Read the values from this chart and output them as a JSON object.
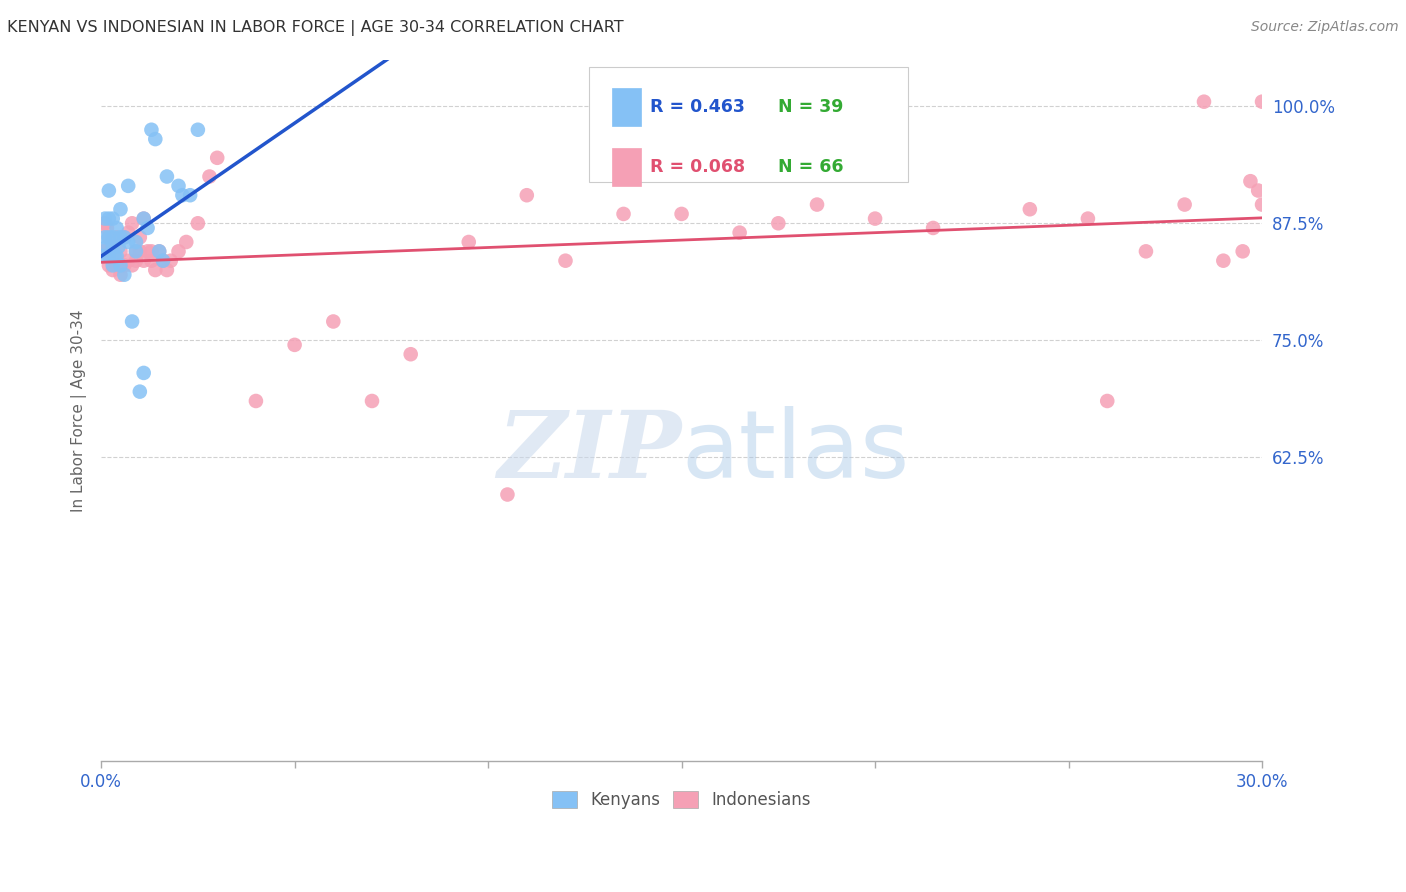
{
  "title": "KENYAN VS INDONESIAN IN LABOR FORCE | AGE 30-34 CORRELATION CHART",
  "source": "Source: ZipAtlas.com",
  "ylabel": "In Labor Force | Age 30-34",
  "xlim": [
    0.0,
    0.3
  ],
  "ylim": [
    0.3,
    1.05
  ],
  "ytick_vals": [
    0.625,
    0.75,
    0.875,
    1.0
  ],
  "ytick_labels": [
    "62.5%",
    "75.0%",
    "87.5%",
    "100.0%"
  ],
  "xticks": [
    0.0,
    0.05,
    0.1,
    0.15,
    0.2,
    0.25,
    0.3
  ],
  "xtick_labels": [
    "0.0%",
    "",
    "",
    "",
    "",
    "",
    "30.0%"
  ],
  "grid_color": "#cccccc",
  "background_color": "#ffffff",
  "kenyan_color": "#85c1f5",
  "indonesian_color": "#f5a0b5",
  "kenyan_line_color": "#2255cc",
  "indonesian_line_color": "#e05070",
  "label_color": "#3366cc",
  "text_color": "#333333",
  "legend_R_kenyan": "R = 0.463",
  "legend_N_kenyan": "N = 39",
  "legend_R_indonesian": "R = 0.068",
  "legend_N_indonesian": "N = 66",
  "watermark_zip": "ZIP",
  "watermark_atlas": "atlas",
  "kenyan_x": [
    0.0005,
    0.001,
    0.001,
    0.0015,
    0.002,
    0.002,
    0.002,
    0.002,
    0.003,
    0.003,
    0.003,
    0.003,
    0.0035,
    0.004,
    0.004,
    0.0045,
    0.005,
    0.005,
    0.005,
    0.006,
    0.006,
    0.007,
    0.007,
    0.008,
    0.009,
    0.009,
    0.01,
    0.011,
    0.011,
    0.012,
    0.013,
    0.014,
    0.015,
    0.016,
    0.017,
    0.02,
    0.021,
    0.023,
    0.025
  ],
  "kenyan_y": [
    0.84,
    0.86,
    0.88,
    0.85,
    0.84,
    0.86,
    0.88,
    0.91,
    0.83,
    0.85,
    0.86,
    0.88,
    0.84,
    0.84,
    0.87,
    0.85,
    0.83,
    0.86,
    0.89,
    0.82,
    0.86,
    0.855,
    0.915,
    0.77,
    0.845,
    0.855,
    0.695,
    0.715,
    0.88,
    0.87,
    0.975,
    0.965,
    0.845,
    0.835,
    0.925,
    0.915,
    0.905,
    0.905,
    0.975
  ],
  "indonesian_x": [
    0.0005,
    0.001,
    0.001,
    0.0015,
    0.002,
    0.002,
    0.003,
    0.003,
    0.003,
    0.004,
    0.004,
    0.005,
    0.005,
    0.006,
    0.006,
    0.007,
    0.007,
    0.008,
    0.008,
    0.009,
    0.009,
    0.01,
    0.01,
    0.011,
    0.011,
    0.012,
    0.013,
    0.013,
    0.014,
    0.015,
    0.016,
    0.017,
    0.018,
    0.02,
    0.022,
    0.025,
    0.028,
    0.03,
    0.04,
    0.05,
    0.06,
    0.07,
    0.08,
    0.095,
    0.105,
    0.11,
    0.12,
    0.135,
    0.15,
    0.165,
    0.175,
    0.185,
    0.2,
    0.215,
    0.24,
    0.255,
    0.26,
    0.27,
    0.28,
    0.285,
    0.29,
    0.295,
    0.297,
    0.299,
    0.3,
    0.3
  ],
  "indonesian_y": [
    0.845,
    0.845,
    0.875,
    0.87,
    0.83,
    0.86,
    0.825,
    0.845,
    0.855,
    0.83,
    0.86,
    0.82,
    0.845,
    0.83,
    0.86,
    0.835,
    0.865,
    0.83,
    0.875,
    0.835,
    0.845,
    0.845,
    0.86,
    0.835,
    0.88,
    0.845,
    0.835,
    0.845,
    0.825,
    0.845,
    0.835,
    0.825,
    0.835,
    0.845,
    0.855,
    0.875,
    0.925,
    0.945,
    0.685,
    0.745,
    0.77,
    0.685,
    0.735,
    0.855,
    0.585,
    0.905,
    0.835,
    0.885,
    0.885,
    0.865,
    0.875,
    0.895,
    0.88,
    0.87,
    0.89,
    0.88,
    0.685,
    0.845,
    0.895,
    1.005,
    0.835,
    0.845,
    0.92,
    0.91,
    0.895,
    1.005
  ]
}
